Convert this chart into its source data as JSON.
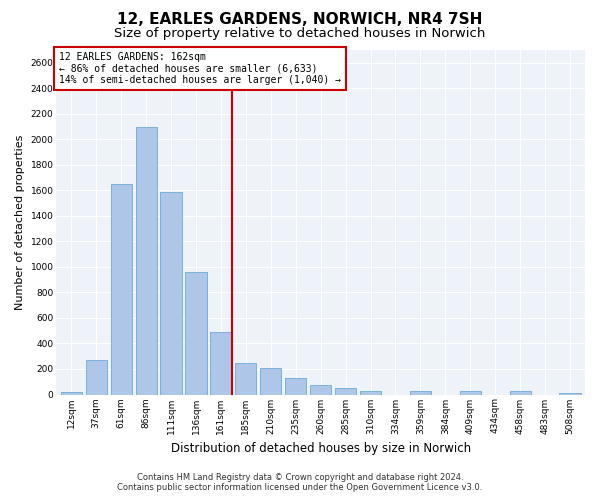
{
  "title1": "12, EARLES GARDENS, NORWICH, NR4 7SH",
  "title2": "Size of property relative to detached houses in Norwich",
  "xlabel": "Distribution of detached houses by size in Norwich",
  "ylabel": "Number of detached properties",
  "annotation_line1": "12 EARLES GARDENS: 162sqm",
  "annotation_line2": "← 86% of detached houses are smaller (6,633)",
  "annotation_line3": "14% of semi-detached houses are larger (1,040) →",
  "footer1": "Contains HM Land Registry data © Crown copyright and database right 2024.",
  "footer2": "Contains public sector information licensed under the Open Government Licence v3.0.",
  "bin_labels": [
    "12sqm",
    "37sqm",
    "61sqm",
    "86sqm",
    "111sqm",
    "136sqm",
    "161sqm",
    "185sqm",
    "210sqm",
    "235sqm",
    "260sqm",
    "285sqm",
    "310sqm",
    "334sqm",
    "359sqm",
    "384sqm",
    "409sqm",
    "434sqm",
    "458sqm",
    "483sqm",
    "508sqm"
  ],
  "bar_values": [
    20,
    270,
    1650,
    2100,
    1590,
    960,
    490,
    250,
    210,
    130,
    75,
    50,
    25,
    0,
    25,
    0,
    25,
    0,
    25,
    0,
    15
  ],
  "bar_color": "#aec6e8",
  "bar_edge_color": "#5a9fd4",
  "reference_line_color": "#cc0000",
  "annotation_box_color": "#cc0000",
  "ylim": [
    0,
    2700
  ],
  "yticks": [
    0,
    200,
    400,
    600,
    800,
    1000,
    1200,
    1400,
    1600,
    1800,
    2000,
    2200,
    2400,
    2600
  ],
  "bg_color": "#eef2f9",
  "grid_color": "#ffffff",
  "title1_fontsize": 11,
  "title2_fontsize": 9.5,
  "xlabel_fontsize": 8.5,
  "ylabel_fontsize": 8,
  "footer_fontsize": 6,
  "annot_fontsize": 7,
  "tick_fontsize": 6.5
}
